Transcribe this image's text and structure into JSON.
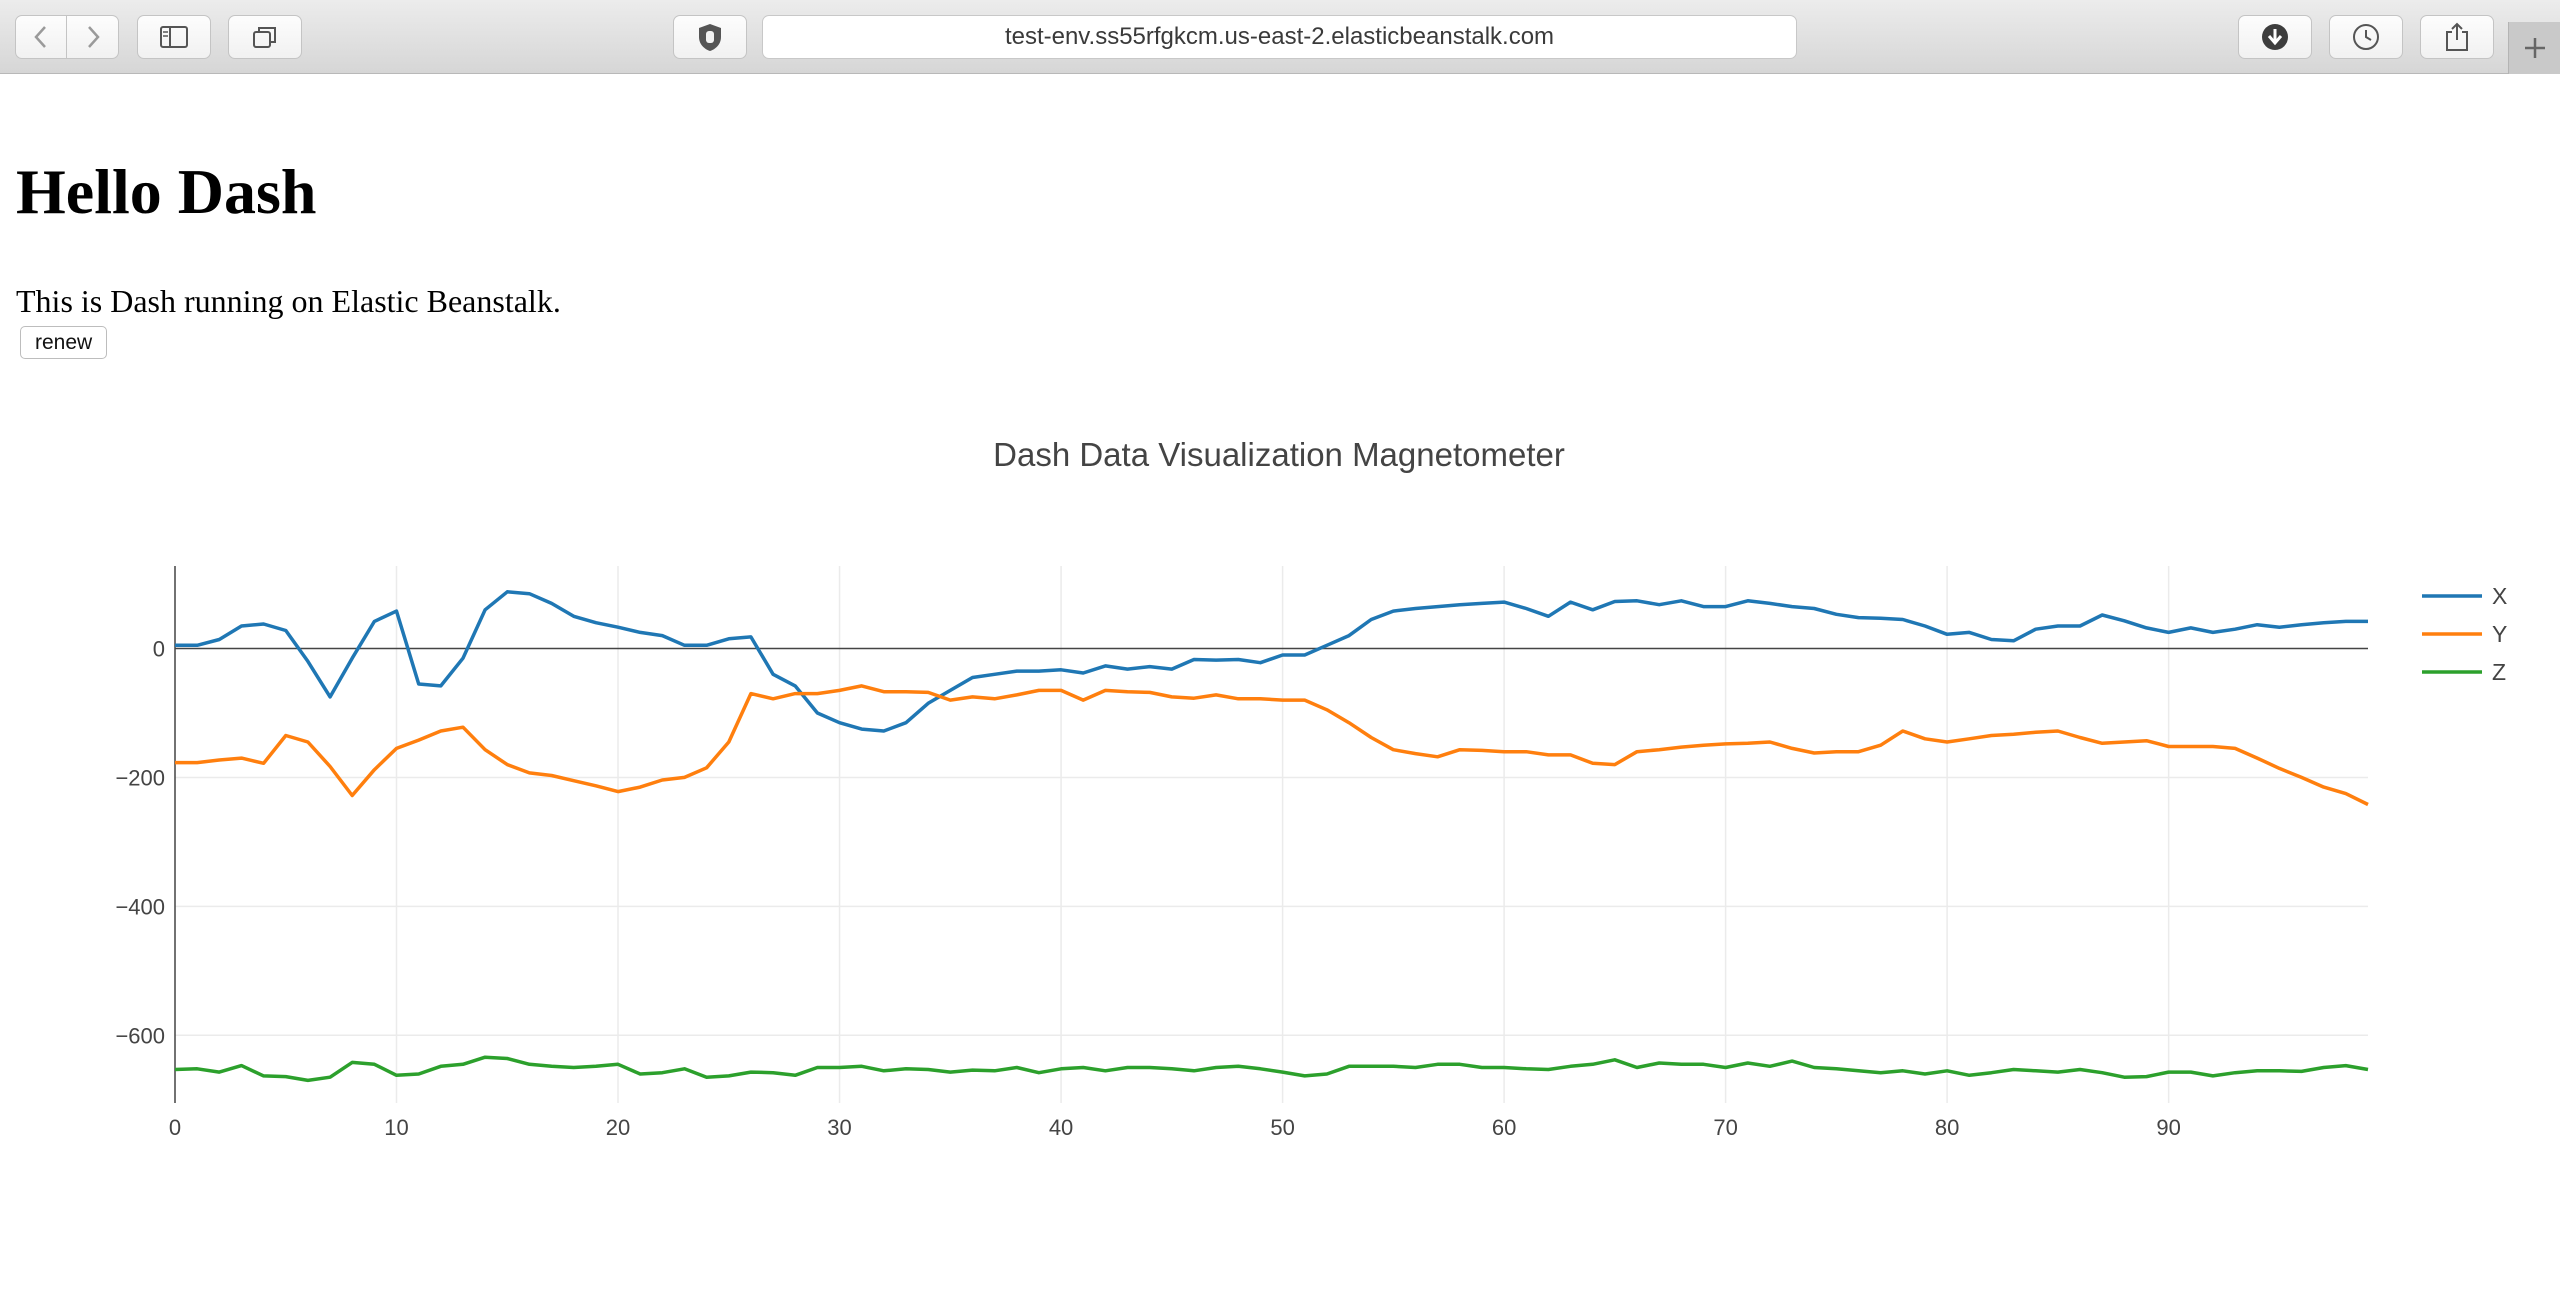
{
  "browser": {
    "url": "test-env.ss55rfgkcm.us-east-2.elasticbeanstalk.com",
    "icons": [
      "chevron-left-icon",
      "chevron-right-icon",
      "sidebar-icon",
      "tabs-icon",
      "privacy-hand-icon",
      "download-icon",
      "history-icon",
      "share-icon",
      "plus-icon"
    ]
  },
  "page": {
    "title": "Hello Dash",
    "description": "This is Dash running on Elastic Beanstalk.",
    "button_label": "renew"
  },
  "colors": {
    "x": "#1f77b4",
    "y": "#ff7f0e",
    "z": "#2ca02c",
    "grid": "#ebebeb",
    "axis": "#444444",
    "zero": "#444444"
  },
  "chart_data": {
    "type": "line",
    "title": "Dash Data Visualization Magnetometer",
    "xlabel": "",
    "ylabel": "",
    "xlim": [
      0,
      99
    ],
    "ylim": [
      -705,
      128
    ],
    "grid": true,
    "legend": "top-right",
    "xticks": [
      0,
      10,
      20,
      30,
      40,
      50,
      60,
      70,
      80,
      90
    ],
    "yticks": [
      0,
      -200,
      -400,
      -600
    ],
    "ytick_labels": [
      "0",
      "−200",
      "−400",
      "−600"
    ],
    "x_start": 0,
    "series": [
      {
        "name": "X",
        "color": "#1f77b4",
        "values": [
          5,
          5,
          14,
          35,
          38,
          28,
          -20,
          -75,
          -15,
          42,
          58,
          -55,
          -58,
          -15,
          60,
          88,
          85,
          70,
          50,
          40,
          33,
          25,
          20,
          5,
          5,
          15,
          18,
          -40,
          -58,
          -100,
          -115,
          -125,
          -128,
          -115,
          -85,
          -65,
          -45,
          -40,
          -35,
          -35,
          -33,
          -38,
          -27,
          -32,
          -28,
          -32,
          -17,
          -18,
          -17,
          -22,
          -10,
          -10,
          5,
          20,
          45,
          58,
          62,
          65,
          68,
          70,
          72,
          62,
          50,
          72,
          60,
          73,
          74,
          68,
          74,
          65,
          65,
          74,
          70,
          65,
          62,
          53,
          48,
          47,
          45,
          35,
          22,
          25,
          14,
          12,
          30,
          35,
          35,
          52,
          43,
          32,
          25,
          32,
          25,
          30,
          37,
          33,
          37,
          40,
          42,
          42
        ]
      },
      {
        "name": "Y",
        "color": "#ff7f0e",
        "values": [
          -177,
          -177,
          -173,
          -170,
          -178,
          -135,
          -145,
          -183,
          -228,
          -188,
          -155,
          -142,
          -128,
          -122,
          -157,
          -180,
          -193,
          -197,
          -205,
          -213,
          -222,
          -215,
          -204,
          -200,
          -185,
          -145,
          -70,
          -78,
          -70,
          -70,
          -65,
          -58,
          -67,
          -67,
          -68,
          -80,
          -75,
          -78,
          -72,
          -65,
          -65,
          -80,
          -65,
          -67,
          -68,
          -75,
          -77,
          -72,
          -78,
          -78,
          -80,
          -80,
          -95,
          -115,
          -138,
          -157,
          -163,
          -168,
          -157,
          -158,
          -160,
          -160,
          -165,
          -165,
          -178,
          -180,
          -160,
          -157,
          -153,
          -150,
          -148,
          -147,
          -145,
          -155,
          -162,
          -160,
          -160,
          -150,
          -128,
          -140,
          -145,
          -140,
          -135,
          -133,
          -130,
          -128,
          -138,
          -147,
          -145,
          -143,
          -152,
          -152,
          -152,
          -155,
          -170,
          -186,
          -200,
          -215,
          -225,
          -242
        ]
      },
      {
        "name": "Z",
        "color": "#2ca02c",
        "values": [
          -653,
          -652,
          -657,
          -647,
          -663,
          -664,
          -670,
          -665,
          -642,
          -645,
          -662,
          -660,
          -648,
          -645,
          -634,
          -636,
          -645,
          -648,
          -650,
          -648,
          -645,
          -660,
          -658,
          -652,
          -665,
          -663,
          -657,
          -658,
          -662,
          -650,
          -650,
          -648,
          -655,
          -652,
          -653,
          -657,
          -654,
          -655,
          -650,
          -658,
          -652,
          -650,
          -655,
          -650,
          -650,
          -652,
          -655,
          -650,
          -648,
          -652,
          -657,
          -663,
          -660,
          -648,
          -648,
          -648,
          -650,
          -645,
          -645,
          -650,
          -650,
          -652,
          -653,
          -648,
          -645,
          -638,
          -650,
          -643,
          -645,
          -645,
          -650,
          -643,
          -648,
          -640,
          -650,
          -652,
          -655,
          -658,
          -655,
          -660,
          -655,
          -662,
          -658,
          -653,
          -655,
          -657,
          -653,
          -658,
          -665,
          -664,
          -657,
          -657,
          -663,
          -658,
          -655,
          -655,
          -656,
          -650,
          -647,
          -653
        ]
      }
    ]
  }
}
